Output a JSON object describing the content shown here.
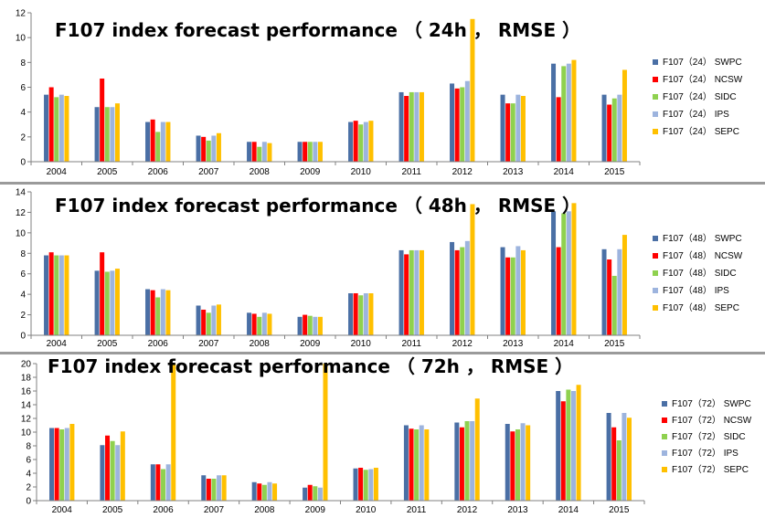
{
  "series_colors": [
    "#4A6FA5",
    "#FF0000",
    "#8FD14F",
    "#9DB4DE",
    "#FFC000"
  ],
  "chart_data": [
    {
      "type": "bar",
      "title": "F107 index forecast performance （ 24h ， RMSE ）",
      "xlabel": "",
      "ylabel": "",
      "ylim": [
        0,
        12
      ],
      "yticks": [
        0,
        2,
        4,
        6,
        8,
        10,
        12
      ],
      "grid": false,
      "legend_position": "right",
      "categories": [
        "2004",
        "2005",
        "2006",
        "2007",
        "2008",
        "2009",
        "2010",
        "2011",
        "2012",
        "2013",
        "2014",
        "2015"
      ],
      "series": [
        {
          "name": "F107（24） SWPC",
          "values": [
            5.4,
            4.4,
            3.2,
            2.1,
            1.6,
            1.6,
            3.2,
            5.6,
            6.3,
            5.4,
            7.9,
            5.4
          ]
        },
        {
          "name": "F107（24） NCSW",
          "values": [
            6.0,
            6.7,
            3.4,
            2.0,
            1.6,
            1.6,
            3.3,
            5.3,
            5.9,
            4.7,
            5.2,
            4.6
          ]
        },
        {
          "name": "F107（24） SIDC",
          "values": [
            5.2,
            4.4,
            2.4,
            1.7,
            1.2,
            1.6,
            3.0,
            5.6,
            6.0,
            4.7,
            7.7,
            5.1
          ]
        },
        {
          "name": "F107（24） IPS",
          "values": [
            5.4,
            4.4,
            3.2,
            2.1,
            1.6,
            1.6,
            3.2,
            5.6,
            6.5,
            5.4,
            7.9,
            5.4
          ]
        },
        {
          "name": "F107（24） SEPC",
          "values": [
            5.3,
            4.7,
            3.2,
            2.3,
            1.5,
            1.6,
            3.3,
            5.6,
            11.5,
            5.3,
            8.2,
            7.4
          ]
        }
      ]
    },
    {
      "type": "bar",
      "title": "F107 index forecast performance （ 48h ， RMSE ）",
      "xlabel": "",
      "ylabel": "",
      "ylim": [
        0,
        14
      ],
      "yticks": [
        0,
        2,
        4,
        6,
        8,
        10,
        12,
        14
      ],
      "grid": false,
      "legend_position": "right",
      "categories": [
        "2004",
        "2005",
        "2006",
        "2007",
        "2008",
        "2009",
        "2010",
        "2011",
        "2012",
        "2013",
        "2014",
        "2015"
      ],
      "series": [
        {
          "name": "F107（48） SWPC",
          "values": [
            7.8,
            6.3,
            4.5,
            2.9,
            2.2,
            1.8,
            4.1,
            8.3,
            9.1,
            8.6,
            12.1,
            8.4
          ]
        },
        {
          "name": "F107（48） NCSW",
          "values": [
            8.1,
            8.1,
            4.4,
            2.5,
            2.1,
            2.0,
            4.1,
            7.9,
            8.3,
            7.6,
            8.6,
            7.4
          ]
        },
        {
          "name": "F107（48） SIDC",
          "values": [
            7.8,
            6.2,
            3.7,
            2.2,
            1.8,
            1.9,
            3.9,
            8.3,
            8.6,
            7.6,
            11.9,
            5.8
          ]
        },
        {
          "name": "F107（48） IPS",
          "values": [
            7.8,
            6.3,
            4.5,
            2.9,
            2.2,
            1.8,
            4.1,
            8.3,
            9.2,
            8.7,
            12.1,
            8.4
          ]
        },
        {
          "name": "F107（48） SEPC",
          "values": [
            7.8,
            6.5,
            4.4,
            3.0,
            2.1,
            1.8,
            4.1,
            8.3,
            12.8,
            8.3,
            12.9,
            9.8
          ]
        }
      ]
    },
    {
      "type": "bar",
      "title": "F107 index forecast performance （ 72h ， RMSE ）",
      "xlabel": "",
      "ylabel": "",
      "ylim": [
        0,
        20
      ],
      "yticks": [
        0,
        2,
        4,
        6,
        8,
        10,
        12,
        14,
        16,
        18,
        20
      ],
      "grid": false,
      "legend_position": "right",
      "categories": [
        "2004",
        "2005",
        "2006",
        "2007",
        "2008",
        "2009",
        "2010",
        "2011",
        "2012",
        "2013",
        "2014",
        "2015"
      ],
      "series": [
        {
          "name": "F107（72） SWPC",
          "values": [
            10.6,
            8.1,
            5.3,
            3.7,
            2.7,
            1.9,
            4.7,
            11.0,
            11.4,
            11.2,
            16.0,
            12.8
          ]
        },
        {
          "name": "F107（72） NCSW",
          "values": [
            10.6,
            9.5,
            5.3,
            3.2,
            2.5,
            2.3,
            4.8,
            10.5,
            10.7,
            10.1,
            14.5,
            10.7
          ]
        },
        {
          "name": "F107（72） SIDC",
          "values": [
            10.4,
            8.7,
            4.6,
            3.2,
            2.3,
            2.1,
            4.5,
            10.4,
            11.6,
            10.4,
            16.2,
            8.8
          ]
        },
        {
          "name": "F107（72） IPS",
          "values": [
            10.6,
            8.1,
            5.3,
            3.7,
            2.7,
            1.9,
            4.6,
            11.0,
            11.6,
            11.3,
            16.0,
            12.8
          ]
        },
        {
          "name": "F107（72） SEPC",
          "values": [
            11.2,
            10.1,
            20.0,
            3.7,
            2.5,
            20.0,
            4.8,
            10.4,
            14.9,
            11.0,
            16.9,
            12.1
          ]
        }
      ]
    }
  ]
}
